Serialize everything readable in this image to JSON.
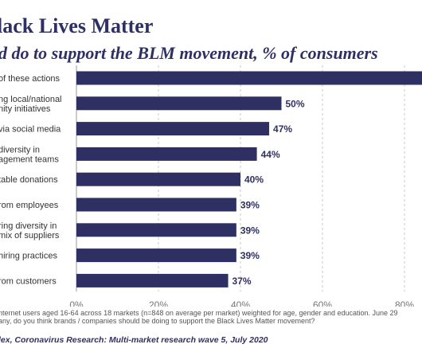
{
  "header": {
    "title": "lack Lives Matter",
    "subtitle": "d do to support the BLM movement, % of consumers"
  },
  "chart_data": {
    "type": "bar",
    "orientation": "horizontal",
    "categories": [
      [
        "of these actions"
      ],
      [
        "ng local/national",
        "nity initiatives"
      ],
      [
        "via social media"
      ],
      [
        "diversity in",
        "agement teams"
      ],
      [
        "table donations"
      ],
      [
        "rom employees"
      ],
      [
        "ring diversity in",
        "mix of suppliers"
      ],
      [
        "hiring practices"
      ],
      [
        "rom customers"
      ]
    ],
    "values": [
      85,
      50,
      47,
      44,
      40,
      39,
      39,
      39,
      37
    ],
    "value_labels": [
      "",
      "50%",
      "47%",
      "44%",
      "40%",
      "39%",
      "39%",
      "39%",
      "37%"
    ],
    "xticks": [
      0,
      20,
      40,
      60,
      80
    ],
    "xtick_labels": [
      "0%",
      "20%",
      "40%",
      "60%",
      "80%"
    ],
    "xlim": [
      0,
      85
    ],
    "bar_color": "#2e3063",
    "grid": "vertical dashed"
  },
  "footer": {
    "note_line1": "nternet users aged 16-64 across 18 markets (n=848 on average per market) weighted for age, gender and education. June 29",
    "note_line2": "any, do you think brands / companies should be doing to support the Black Lives Matter movement?",
    "source": "lex, Coronavirus Research: Multi-market research wave 5, July 2020"
  }
}
